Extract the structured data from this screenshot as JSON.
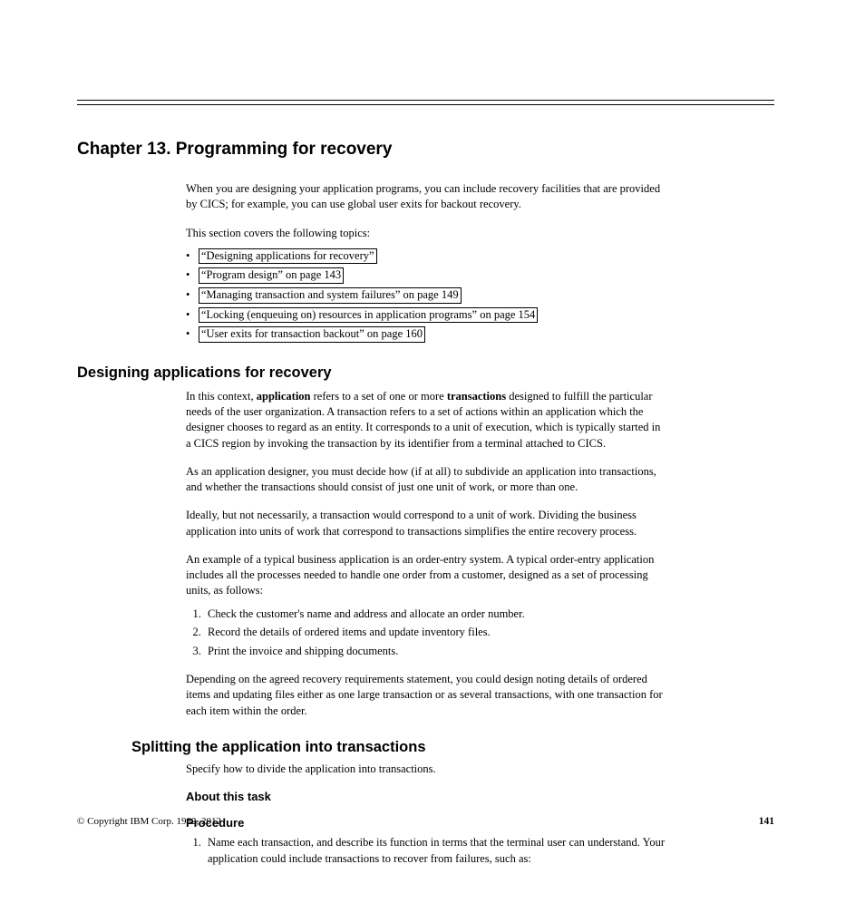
{
  "chapter_title": "Chapter 13. Programming for recovery",
  "intro": "When you are designing your application programs, you can include recovery facilities that are provided by CICS; for example, you can use global user exits for backout recovery.",
  "toc_lead": "This section covers the following topics:",
  "toc": [
    "“Designing applications for recovery”",
    "“Program design” on page 143",
    "“Managing transaction and system failures” on page 149",
    "“Locking (enqueuing on) resources in application programs” on page 154",
    "“User exits for transaction backout” on page 160"
  ],
  "sec1": {
    "heading": "Designing applications for recovery",
    "p1_a": "In this context, ",
    "p1_b": "application",
    "p1_c": " refers to a set of one or more ",
    "p1_d": "transactions",
    "p1_e": " designed to fulfill the particular needs of the user organization. A transaction refers to a set of actions within an application which the designer chooses to regard as an entity. It corresponds to a unit of execution, which is typically started in a CICS region by invoking the transaction by its identifier from a terminal attached to CICS.",
    "p2": "As an application designer, you must decide how (if at all) to subdivide an application into transactions, and whether the transactions should consist of just one unit of work, or more than one.",
    "p3": "Ideally, but not necessarily, a transaction would correspond to a unit of work. Dividing the business application into units of work that correspond to transactions simplifies the entire recovery process.",
    "p4": "An example of a typical business application is an order-entry system. A typical order-entry application includes all the processes needed to handle one order from a customer, designed as a set of processing units, as follows:",
    "list": [
      "Check the customer's name and address and allocate an order number.",
      "Record the details of ordered items and update inventory files.",
      "Print the invoice and shipping documents."
    ],
    "p5": "Depending on the agreed recovery requirements statement, you could design noting details of ordered items and updating files either as one large transaction or as several transactions, with one transaction for each item within the order."
  },
  "sec2": {
    "heading": "Splitting the application into transactions",
    "p1": "Specify how to divide the application into transactions.",
    "about": "About this task",
    "procedure": "Procedure",
    "step1": "Name each transaction, and describe its function in terms that the terminal user can understand. Your application could include transactions to recover from failures, such as:"
  },
  "footer": {
    "copyright": "© Copyright IBM Corp. 1982, 2012",
    "page": "141"
  }
}
